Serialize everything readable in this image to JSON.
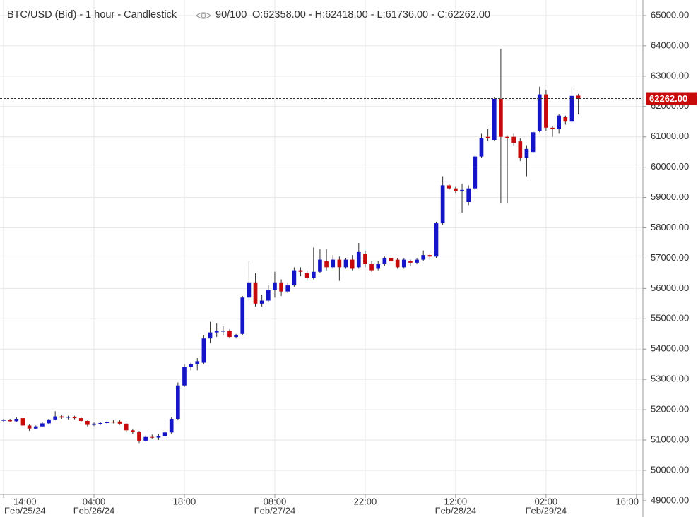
{
  "chart_data": {
    "type": "candlestick",
    "title": "BTC/USD (Bid) - 1 hour - Candlestick",
    "count_label": "90/100",
    "ohlc_label": "O:62358.00 - H:62418.00 - L:61736.00 - C:62262.00",
    "up_color": "#1414c8",
    "down_color": "#c80a0a",
    "grid": true,
    "last_price": {
      "value": 62262,
      "label": "62262.00"
    },
    "xlim": [
      -0.55,
      99
    ],
    "ylim": [
      49207,
      65512
    ],
    "xticks": [
      {
        "value": 0,
        "label": "14:00",
        "date": "Feb/25/24"
      },
      {
        "value": 14,
        "label": "04:00",
        "date": "Feb/26/24"
      },
      {
        "value": 28,
        "label": "18:00"
      },
      {
        "value": 42,
        "label": "08:00",
        "date": "Feb/27/24"
      },
      {
        "value": 56,
        "label": "22:00"
      },
      {
        "value": 70,
        "label": "12:00",
        "date": "Feb/28/24"
      },
      {
        "value": 84,
        "label": "02:00",
        "date": "Feb/29/24"
      },
      {
        "value": 98,
        "label": "16:00"
      }
    ],
    "yticks": [
      {
        "value": 49000,
        "label": "49000.00"
      },
      {
        "value": 50000,
        "label": "50000.00"
      },
      {
        "value": 51000,
        "label": "51000.00"
      },
      {
        "value": 52000,
        "label": "52000.00"
      },
      {
        "value": 53000,
        "label": "53000.00"
      },
      {
        "value": 54000,
        "label": "54000.00"
      },
      {
        "value": 55000,
        "label": "55000.00"
      },
      {
        "value": 56000,
        "label": "56000.00"
      },
      {
        "value": 57000,
        "label": "57000.00"
      },
      {
        "value": 58000,
        "label": "58000.00"
      },
      {
        "value": 59000,
        "label": "59000.00"
      },
      {
        "value": 60000,
        "label": "60000.00"
      },
      {
        "value": 61000,
        "label": "61000.00"
      },
      {
        "value": 62000,
        "label": "62000.00"
      },
      {
        "value": 63000,
        "label": "63000.00"
      },
      {
        "value": 64000,
        "label": "64000.00"
      },
      {
        "value": 65000,
        "label": "65000.00"
      }
    ],
    "open": [
      51650,
      51660,
      51620,
      51720,
      51480,
      51380,
      51450,
      51550,
      51680,
      51780,
      51740,
      51760,
      51720,
      51630,
      51500,
      51540,
      51560,
      51600,
      51610,
      51540,
      51320,
      51260,
      50980,
      51100,
      51080,
      51120,
      51250,
      51700,
      52800,
      53400,
      53500,
      53550,
      54350,
      54550,
      54600,
      54600,
      54400,
      54500,
      55700,
      56200,
      55500,
      55600,
      55950,
      56200,
      55900,
      56100,
      56600,
      56500,
      56350,
      56550,
      56900,
      56700,
      56950,
      56700,
      56950,
      56700,
      57150,
      56800,
      56650,
      56800,
      57000,
      56950,
      56700,
      56900,
      56850,
      56950,
      57100,
      57050,
      58150,
      59400,
      59300,
      59200,
      58850,
      59300,
      60350,
      61000,
      60900,
      62250,
      61000,
      61000,
      60850,
      60300,
      60500,
      61200,
      62400,
      61300,
      61250,
      61650,
      61500,
      62358
    ],
    "high": [
      51700,
      51700,
      51750,
      51760,
      51520,
      51480,
      51600,
      51700,
      51950,
      51820,
      51800,
      51800,
      51760,
      51650,
      51580,
      51600,
      51620,
      51650,
      51650,
      51560,
      51360,
      51300,
      51150,
      51180,
      51200,
      51300,
      51750,
      52900,
      53500,
      53550,
      53700,
      54450,
      54900,
      54850,
      54750,
      54650,
      54500,
      55750,
      56900,
      56500,
      55800,
      56100,
      56550,
      56300,
      56200,
      56700,
      56700,
      56600,
      57350,
      57300,
      57300,
      57100,
      57050,
      57000,
      57100,
      57500,
      57250,
      56900,
      56900,
      57050,
      57050,
      57000,
      57000,
      56950,
      57000,
      57250,
      57150,
      58200,
      59700,
      59450,
      59350,
      59450,
      59400,
      60400,
      61100,
      61250,
      62300,
      63900,
      61050,
      61100,
      60950,
      60700,
      61200,
      62650,
      62550,
      61350,
      61750,
      61700,
      62650,
      62418
    ],
    "low": [
      51600,
      51600,
      51600,
      51400,
      51300,
      51350,
      51420,
      51520,
      51650,
      51700,
      51680,
      51680,
      51600,
      51450,
      51460,
      51500,
      51520,
      51550,
      51500,
      51250,
      51200,
      50900,
      50950,
      51050,
      51000,
      51100,
      51200,
      51650,
      52750,
      53300,
      53300,
      53500,
      54200,
      54400,
      54450,
      54350,
      54350,
      54450,
      55600,
      55400,
      55400,
      55550,
      55700,
      55750,
      55850,
      56050,
      56400,
      56250,
      56300,
      56500,
      56600,
      56650,
      56250,
      56650,
      56600,
      56650,
      56700,
      56550,
      56600,
      56750,
      56850,
      56650,
      56650,
      56750,
      56800,
      56900,
      56950,
      57000,
      58100,
      59250,
      59150,
      58500,
      58750,
      59250,
      60300,
      60850,
      60850,
      58800,
      58800,
      60700,
      60200,
      59700,
      60450,
      61150,
      61200,
      61000,
      61100,
      61400,
      61450,
      61736
    ],
    "close": [
      51660,
      51620,
      51700,
      51480,
      51380,
      51450,
      51550,
      51680,
      51780,
      51740,
      51760,
      51720,
      51630,
      51500,
      51540,
      51560,
      51600,
      51580,
      51540,
      51320,
      51260,
      50980,
      51100,
      51080,
      51120,
      51250,
      51700,
      52800,
      53400,
      53500,
      53600,
      54350,
      54550,
      54600,
      54600,
      54400,
      54450,
      55700,
      56200,
      55500,
      55600,
      55950,
      56200,
      55900,
      56100,
      56600,
      56550,
      56350,
      56550,
      56950,
      56700,
      56950,
      56700,
      56950,
      56650,
      57200,
      56800,
      56600,
      56800,
      57000,
      56900,
      56700,
      56950,
      56850,
      56950,
      57100,
      57050,
      58150,
      59400,
      59300,
      59200,
      59250,
      59300,
      60350,
      60950,
      60950,
      62250,
      61000,
      60950,
      60800,
      60300,
      60600,
      61150,
      62400,
      61300,
      61250,
      61700,
      61500,
      62350,
      62262
    ]
  }
}
